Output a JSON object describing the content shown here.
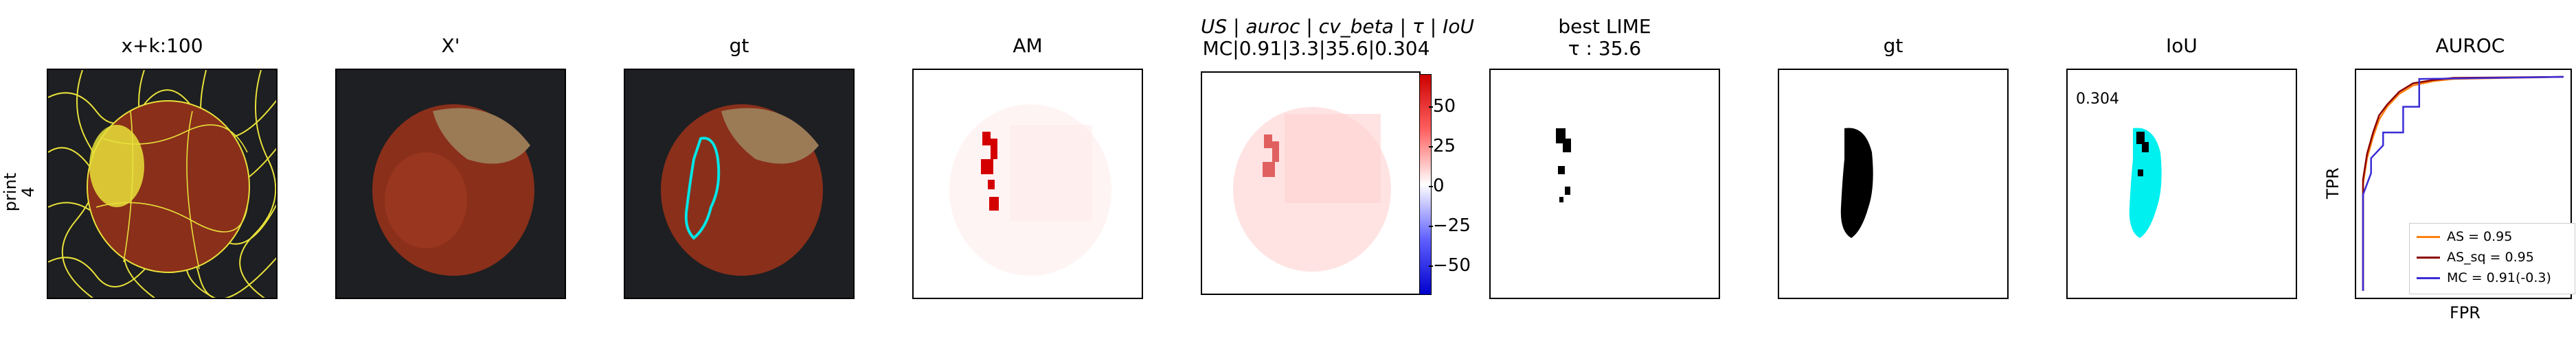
{
  "row_label": "print\n4",
  "panels": [
    {
      "title": "x+k:100"
    },
    {
      "title": "X'"
    },
    {
      "title": "gt"
    },
    {
      "title": "AM"
    },
    {
      "title_line1": "US | auroc | cv_beta | τ | IoU",
      "title_line2": "MC|0.91|3.3|35.6|0.304"
    },
    {
      "title_line1": "best LIME",
      "title_line2": "τ : 35.6"
    },
    {
      "title": "gt"
    },
    {
      "title": "IoU",
      "value": "0.304"
    },
    {
      "title": "AUROC"
    }
  ],
  "colorbar": {
    "ticks": [
      "50",
      "25",
      "0",
      "−25",
      "−50"
    ]
  },
  "chart_data": {
    "type": "line",
    "title": "AUROC",
    "xlabel": "FPR",
    "ylabel": "TPR",
    "xlim": [
      0,
      1
    ],
    "ylim": [
      0,
      1
    ],
    "grid": false,
    "legend_position": "bottom-right",
    "series": [
      {
        "name": "AS = 0.95",
        "color": "#ff7f0e",
        "x": [
          0.0,
          0.0,
          0.02,
          0.05,
          0.08,
          0.12,
          0.18,
          0.25,
          0.35,
          0.45,
          1.0
        ],
        "y": [
          0.0,
          0.5,
          0.62,
          0.72,
          0.8,
          0.86,
          0.92,
          0.96,
          0.98,
          0.99,
          1.0
        ]
      },
      {
        "name": "AS_sq = 0.95",
        "color": "#8b0000",
        "x": [
          0.0,
          0.0,
          0.02,
          0.05,
          0.08,
          0.12,
          0.18,
          0.25,
          0.35,
          0.45,
          1.0
        ],
        "y": [
          0.0,
          0.52,
          0.64,
          0.74,
          0.82,
          0.87,
          0.93,
          0.97,
          0.985,
          0.995,
          1.0
        ]
      },
      {
        "name": "MC = 0.91(-0.3)",
        "color": "#3a2bd6",
        "x": [
          0.0,
          0.0,
          0.04,
          0.04,
          0.1,
          0.1,
          0.2,
          0.2,
          0.28,
          0.28,
          1.0
        ],
        "y": [
          0.0,
          0.45,
          0.55,
          0.62,
          0.68,
          0.74,
          0.74,
          0.86,
          0.86,
          0.99,
          1.0
        ]
      }
    ]
  }
}
